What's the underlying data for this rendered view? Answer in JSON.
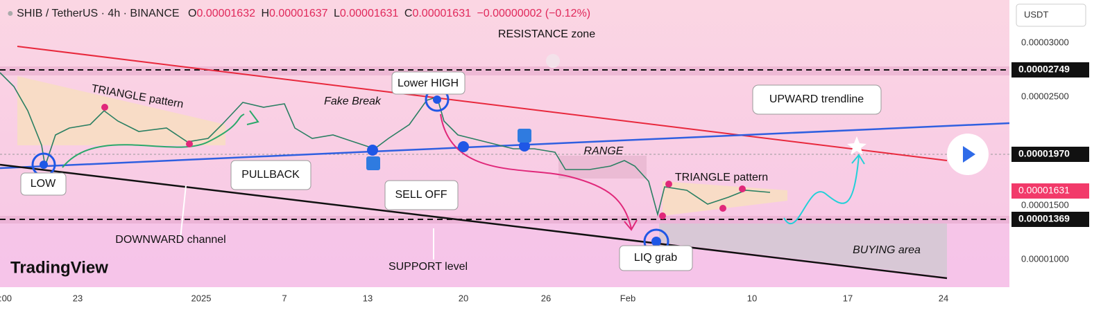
{
  "header": {
    "symbol": "SHIB / TetherUS · 4h · BINANCE",
    "ohlc": [
      {
        "label": "O",
        "value": "0.00001632"
      },
      {
        "label": "H",
        "value": "0.00001637"
      },
      {
        "label": "L",
        "value": "0.00001631"
      },
      {
        "label": "C",
        "value": "0.00001631"
      }
    ],
    "change": "−0.00000002 (−0.12%)"
  },
  "currency": "USDT",
  "price_axis": [
    "0.00003000",
    "0.00002500",
    "0.00001500",
    "0.00001000"
  ],
  "price_tags": [
    "0.00002749",
    "0.00001970",
    "0.00001631",
    "0.00001369"
  ],
  "time_axis": [
    ":00",
    "23",
    "2025",
    "7",
    "13",
    "20",
    "26",
    "Feb",
    "10",
    "17",
    "24"
  ],
  "annotations": [
    "RESISTANCE zone",
    "TRIANGLE pattern",
    "Fake Break",
    "Lower HIGH",
    "UPWARD trendline",
    "RANGE",
    "TRIANGLE pattern",
    "LOW",
    "PULLBACK",
    "SELL OFF",
    "DOWNWARD channel",
    "SUPPORT level",
    "LIQ grab",
    "BUYING area"
  ],
  "logo": "TradingView"
}
